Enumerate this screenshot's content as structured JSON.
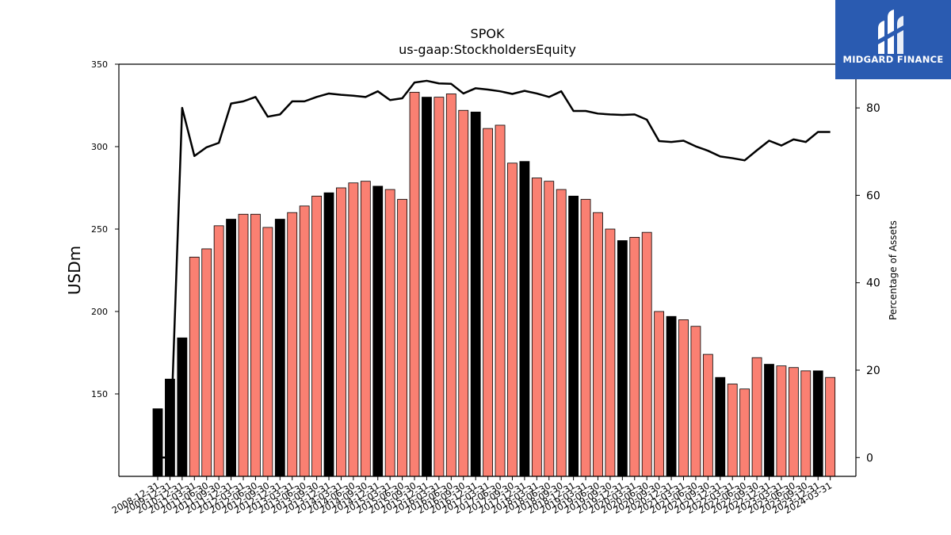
{
  "brand": {
    "name": "MIDGARD FINANCE",
    "color": "#2a5bb1"
  },
  "chart_data": {
    "type": "bar+line",
    "title": "SPOK",
    "subtitle": "us-gaap:StockholdersEquity",
    "ylabel": "USDm",
    "y2label": "Percentage of Assets",
    "ylim": [
      100,
      350
    ],
    "y2lim": [
      -4.3,
      90
    ],
    "yticks": [
      150,
      200,
      250,
      300,
      350
    ],
    "y2ticks": [
      0,
      20,
      40,
      60,
      80
    ],
    "categories": [
      "2008-12-31",
      "2009-12-31",
      "2010-12-31",
      "2011-03-31",
      "2011-06-30",
      "2011-09-30",
      "2011-12-31",
      "2012-03-31",
      "2012-06-30",
      "2012-09-30",
      "2012-12-31",
      "2013-03-31",
      "2013-06-30",
      "2013-09-30",
      "2013-12-31",
      "2014-03-31",
      "2014-06-30",
      "2014-09-30",
      "2014-12-31",
      "2015-03-31",
      "2015-06-30",
      "2015-09-30",
      "2015-12-31",
      "2016-03-31",
      "2016-06-30",
      "2016-09-30",
      "2016-12-31",
      "2017-03-31",
      "2017-06-30",
      "2017-09-30",
      "2017-12-31",
      "2018-03-31",
      "2018-06-30",
      "2018-09-30",
      "2018-12-31",
      "2019-03-31",
      "2019-06-30",
      "2019-09-30",
      "2019-12-31",
      "2020-03-31",
      "2020-06-30",
      "2020-09-30",
      "2020-12-31",
      "2021-03-31",
      "2021-06-30",
      "2021-09-30",
      "2021-12-31",
      "2022-03-31",
      "2022-06-30",
      "2022-09-30",
      "2022-12-31",
      "2023-03-31",
      "2023-06-30",
      "2023-09-30",
      "2023-12-31",
      "2024-03-31"
    ],
    "series": [
      {
        "kind": "bar",
        "values": [
          141,
          159,
          184,
          233,
          238,
          252,
          256,
          259,
          259,
          251,
          256,
          260,
          264,
          270,
          272,
          275,
          278,
          279,
          276,
          274,
          268,
          333,
          330,
          330,
          332,
          322,
          321,
          311,
          313,
          290,
          291,
          281,
          279,
          274,
          270,
          268,
          260,
          250,
          243,
          245,
          248,
          200,
          197,
          195,
          191,
          174,
          160,
          156,
          153,
          172,
          168,
          167,
          166,
          164,
          164,
          160
        ],
        "annual_flags": [
          true,
          true,
          true,
          false,
          false,
          false,
          true,
          false,
          false,
          false,
          true,
          false,
          false,
          false,
          true,
          false,
          false,
          false,
          true,
          false,
          false,
          false,
          true,
          false,
          false,
          false,
          true,
          false,
          false,
          false,
          true,
          false,
          false,
          false,
          true,
          false,
          false,
          false,
          true,
          false,
          false,
          false,
          true,
          false,
          false,
          false,
          true,
          false,
          false,
          false,
          true,
          false,
          false,
          false,
          true,
          false
        ],
        "colors": {
          "annual": "#000000",
          "quarterly": "#fa8072"
        }
      },
      {
        "kind": "line",
        "axis": "right",
        "color": "#000000",
        "values": [
          0,
          0,
          80,
          69,
          71,
          72,
          81,
          81.5,
          82.5,
          78,
          78.5,
          81.5,
          81.5,
          82.5,
          83.3,
          83,
          82.8,
          82.5,
          83.8,
          81.8,
          82.2,
          85.8,
          86.2,
          85.6,
          85.5,
          83.3,
          84.5,
          84.2,
          83.8,
          83.2,
          83.9,
          83.3,
          82.5,
          83.8,
          79.3,
          79.3,
          78.7,
          78.5,
          78.4,
          78.5,
          77.3,
          72.4,
          72.2,
          72.5,
          71.2,
          70.2,
          68.9,
          68.5,
          68,
          70.3,
          72.5,
          71.4,
          72.8,
          72.2,
          74.5,
          74.5
        ]
      }
    ]
  }
}
